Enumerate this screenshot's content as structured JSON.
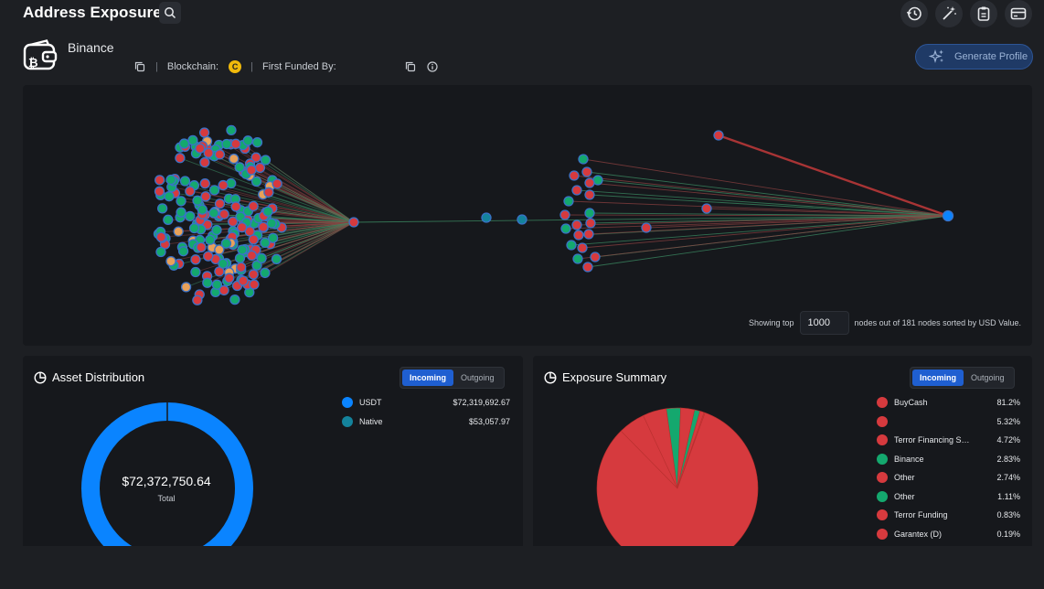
{
  "header": {
    "title": "Address Exposure"
  },
  "entity": {
    "name": "Binance",
    "blockchain_label": "Blockchain:",
    "first_funded_label": "First Funded By:",
    "generate_button": "Generate Profile",
    "coin_glyph": "C"
  },
  "graph": {
    "showing_prefix": "Showing top",
    "node_limit": "1000",
    "showing_suffix": "nodes out of 181 nodes sorted by USD Value."
  },
  "asset_distribution": {
    "title": "Asset Distribution",
    "toggle": {
      "incoming": "Incoming",
      "outgoing": "Outgoing"
    },
    "total_amount": "$72,372,750.64",
    "total_label": "Total",
    "items": [
      {
        "name": "USDT",
        "value": "$72,319,692.67",
        "amount": 72319692.67,
        "color": "#0a84ff"
      },
      {
        "name": "Native",
        "value": "$53,057.97",
        "amount": 53057.97,
        "color": "#14839c"
      }
    ]
  },
  "exposure_summary": {
    "title": "Exposure Summary",
    "toggle": {
      "incoming": "Incoming",
      "outgoing": "Outgoing"
    },
    "items": [
      {
        "name": "BuyCash",
        "pct": "81.2%",
        "color": "#d63a3e"
      },
      {
        "name": "",
        "pct": "5.32%",
        "color": "#d63a3e"
      },
      {
        "name": "Terror Financing S…",
        "pct": "4.72%",
        "color": "#d63a3e"
      },
      {
        "name": "Binance",
        "pct": "2.83%",
        "color": "#14a86e"
      },
      {
        "name": "Other",
        "pct": "2.74%",
        "color": "#d63a3e"
      },
      {
        "name": "Other",
        "pct": "1.11%",
        "color": "#14a86e"
      },
      {
        "name": "Terror Funding",
        "pct": "0.83%",
        "color": "#d63a3e"
      },
      {
        "name": "Garantex (D)",
        "pct": "0.19%",
        "color": "#d63a3e"
      }
    ]
  },
  "colors": {
    "accent": "#1f5fd1",
    "risk": "#d63a3e",
    "safe": "#14a86e",
    "neutral": "#0a84ff",
    "warn": "#e8a15a"
  }
}
